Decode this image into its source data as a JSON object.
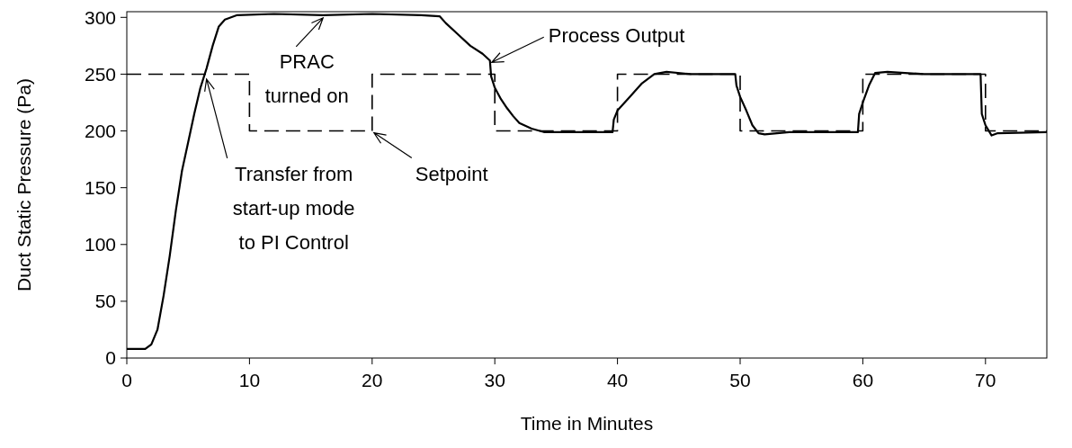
{
  "chart_data": {
    "type": "line",
    "xlabel": "Time in Minutes",
    "ylabel": "Duct Static Pressure (Pa)",
    "xlim": [
      0,
      75
    ],
    "ylim": [
      0,
      305
    ],
    "xticks": [
      0,
      10,
      20,
      30,
      40,
      50,
      60,
      70
    ],
    "yticks": [
      0,
      50,
      100,
      150,
      200,
      250,
      300
    ],
    "grid": false,
    "legend": "top right",
    "marker": "none",
    "series": [
      {
        "name": "Process Output",
        "color": "#000000",
        "line_style": "solid",
        "x": [
          0,
          1.5,
          2,
          2.5,
          3,
          3.5,
          4,
          4.5,
          5,
          5.5,
          6,
          6.5,
          7,
          7.5,
          8,
          8.5,
          9,
          12,
          16,
          20,
          24,
          25.5,
          26,
          27,
          28,
          29,
          29.6,
          29.7,
          30,
          30.5,
          31,
          31.5,
          32,
          33,
          34,
          39.6,
          39.7,
          40,
          41,
          42,
          43,
          44,
          46,
          49.6,
          49.7,
          50,
          50.5,
          51,
          51.5,
          52,
          54,
          59.6,
          59.7,
          60,
          60.5,
          61,
          62,
          65,
          69.6,
          69.7,
          70,
          70.5,
          71,
          75
        ],
        "values": [
          8,
          8,
          12,
          25,
          55,
          90,
          130,
          165,
          190,
          215,
          238,
          255,
          275,
          292,
          298,
          300,
          302,
          303,
          302,
          303,
          302,
          301,
          295,
          285,
          275,
          268,
          262,
          248,
          238,
          228,
          220,
          213,
          207,
          202,
          199,
          199,
          210,
          218,
          230,
          242,
          250,
          252,
          250,
          250,
          240,
          230,
          218,
          205,
          198,
          197,
          199,
          199,
          215,
          225,
          240,
          251,
          252,
          250,
          250,
          215,
          205,
          196,
          198,
          199
        ]
      },
      {
        "name": "Setpoint",
        "color": "#000000",
        "type": "step",
        "line_style": "dashed",
        "x": [
          0,
          10,
          20,
          30,
          40,
          50,
          60,
          70,
          75
        ],
        "values": [
          250,
          200,
          250,
          200,
          250,
          200,
          250,
          200,
          200
        ]
      }
    ],
    "annotations": [
      {
        "text": "PRAC\nturned on",
        "x": 16,
        "y": 302
      },
      {
        "text": "Transfer from\nstart-up mode\nto PI Control",
        "x": 6.5,
        "y": 248
      }
    ]
  }
}
